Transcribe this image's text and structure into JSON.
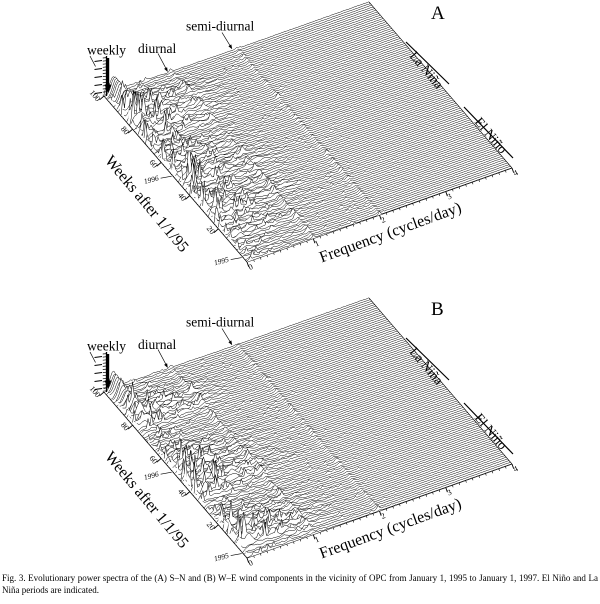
{
  "figure": {
    "caption": "Fig. 3.  Evolutionary power spectra of the (A) S–N and (B) W–E wind components in the vicinity of OPC from January 1, 1995 to January 1, 1997. El Niño and La Niña periods are indicated.",
    "panels": [
      {
        "panel_label": "A",
        "component": "S–N wind",
        "xlabel": "Frequency (cycles/day)",
        "ylabel": "Weeks after 1/1/95",
        "annotations": {
          "weekly": "weekly",
          "diurnal": "diurnal",
          "semi_diurnal": "semi-diurnal",
          "la_nina": "La Niña",
          "el_nino": "El Niño"
        },
        "freq_ticks": [
          "0",
          "1",
          "2",
          "3",
          "4"
        ],
        "week_ticks": [
          "20",
          "40",
          "60",
          "80",
          "100"
        ],
        "year_ticks": [
          "1995",
          "1996"
        ]
      },
      {
        "panel_label": "B",
        "component": "W–E wind",
        "xlabel": "Frequency (cycles/day)",
        "ylabel": "Weeks after 1/1/95",
        "annotations": {
          "weekly": "weekly",
          "diurnal": "diurnal",
          "semi_diurnal": "semi-diurnal",
          "la_nina": "La Niña",
          "el_nino": "El Niño"
        },
        "freq_ticks": [
          "0",
          "1",
          "2",
          "3",
          "4"
        ],
        "week_ticks": [
          "20",
          "40",
          "60",
          "80",
          "100"
        ],
        "year_ticks": [
          "1995",
          "1996"
        ]
      }
    ],
    "colors": {
      "ink": "#000000",
      "paper": "#ffffff"
    }
  },
  "chart_data": [
    {
      "type": "area",
      "variant": "3d-waterfall-spectra",
      "title": "Evolutionary power spectrum, S–N wind component (panel A)",
      "xlabel": "Frequency (cycles/day)",
      "xlim": [
        0,
        4
      ],
      "x_ticks": [
        0,
        1,
        2,
        3,
        4
      ],
      "series_axis_label": "Weeks after 1/1/95",
      "series_range_weeks": [
        0,
        100
      ],
      "week_ticks": [
        20,
        40,
        60,
        80,
        100
      ],
      "year_marks": [
        {
          "label": "1995",
          "week": 3
        },
        {
          "label": "1996",
          "week": 52
        }
      ],
      "z_axis": "relative log power (unlabeled tick scale bar)",
      "n_spectra": 101,
      "spectral_peaks": [
        {
          "name": "weekly",
          "frequency_cpd": 0.14
        },
        {
          "name": "diurnal",
          "frequency_cpd": 1.0
        },
        {
          "name": "semi-diurnal",
          "frequency_cpd": 2.0
        }
      ],
      "climate_periods": [
        {
          "name": "El Niño",
          "weeks": [
            6,
            39
          ]
        },
        {
          "name": "La Niña",
          "weeks": [
            49,
            82
          ]
        }
      ],
      "character": "broadband low-frequency power below ~1.5 cycles/day with episodic weekly-scale bursts; persistent narrow diurnal and semi-diurnal ridges; spectra nearly flat above ~2.5 cycles/day"
    },
    {
      "type": "area",
      "variant": "3d-waterfall-spectra",
      "title": "Evolutionary power spectrum, W–E wind component (panel B)",
      "xlabel": "Frequency (cycles/day)",
      "xlim": [
        0,
        4
      ],
      "x_ticks": [
        0,
        1,
        2,
        3,
        4
      ],
      "series_axis_label": "Weeks after 1/1/95",
      "series_range_weeks": [
        0,
        100
      ],
      "week_ticks": [
        20,
        40,
        60,
        80,
        100
      ],
      "year_marks": [
        {
          "label": "1995",
          "week": 3
        },
        {
          "label": "1996",
          "week": 52
        }
      ],
      "z_axis": "relative log power (unlabeled tick scale bar)",
      "n_spectra": 101,
      "spectral_peaks": [
        {
          "name": "weekly",
          "frequency_cpd": 0.14
        },
        {
          "name": "diurnal",
          "frequency_cpd": 1.0
        },
        {
          "name": "semi-diurnal",
          "frequency_cpd": 2.0
        }
      ],
      "climate_periods": [
        {
          "name": "El Niño",
          "weeks": [
            6,
            39
          ]
        },
        {
          "name": "La Niña",
          "weeks": [
            49,
            82
          ]
        }
      ],
      "character": "broadband low-frequency power below ~1.5 cycles/day, strongest bursts in mid-record (late 1995–1996); persistent diurnal and semi-diurnal ridges; flat above ~2.5 cycles/day"
    }
  ]
}
